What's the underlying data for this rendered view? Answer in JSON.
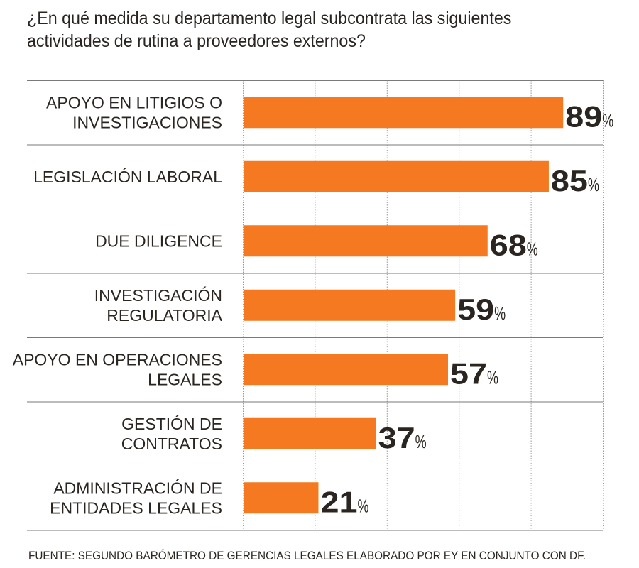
{
  "chart_data": {
    "type": "bar",
    "orientation": "horizontal",
    "title": "¿En qué medida su departamento legal subcontrata las siguientes actividades de rutina a proveedores externos?",
    "categories": [
      [
        "APOYO EN LITIGIOS O",
        "INVESTIGACIONES"
      ],
      [
        "LEGISLACIÓN LABORAL"
      ],
      [
        "DUE DILIGENCE"
      ],
      [
        "INVESTIGACIÓN",
        "REGULATORIA"
      ],
      [
        "APOYO EN OPERACIONES",
        "LEGALES"
      ],
      [
        "GESTIÓN DE",
        "CONTRATOS"
      ],
      [
        "ADMINISTRACIÓN DE",
        "ENTIDADES LEGALES"
      ]
    ],
    "values": [
      89,
      85,
      68,
      59,
      57,
      37,
      21
    ],
    "value_unit": "%",
    "xlim": [
      0,
      100
    ],
    "grid": true,
    "bar_color": "#f47920",
    "source": "FUENTE: SEGUNDO BARÓMETRO DE GERENCIAS LEGALES ELABORADO POR EY EN CONJUNTO CON DF."
  }
}
